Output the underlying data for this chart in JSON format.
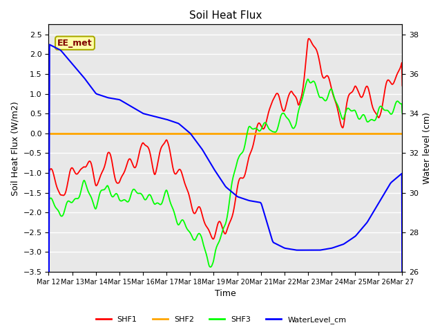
{
  "title": "Soil Heat Flux",
  "xlabel": "Time",
  "ylabel_left": "Soil Heat Flux (W/m2)",
  "ylabel_right": "Water level (cm)",
  "ylim_left": [
    -3.5,
    2.75
  ],
  "ylim_right": [
    26,
    38.5
  ],
  "fig_bg_color": "#ffffff",
  "plot_bg_color": "#e8e8e8",
  "grid_color": "white",
  "annotation_text": "EE_met",
  "annotation_bg": "#ffffaa",
  "annotation_edge": "#aaaa00",
  "annotation_text_color": "#800000",
  "line_colors": {
    "SHF1": "red",
    "SHF2": "orange",
    "SHF3": "lime",
    "WaterLevel_cm": "blue"
  },
  "xtick_labels": [
    "Mar 12",
    "Mar 13",
    "Mar 14",
    "Mar 15",
    "Mar 16",
    "Mar 17",
    "Mar 18",
    "Mar 19",
    "Mar 20",
    "Mar 21",
    "Mar 22",
    "Mar 23",
    "Mar 24",
    "Mar 25",
    "Mar 26",
    "Mar 27"
  ],
  "yticks_left": [
    -3.5,
    -3.0,
    -2.5,
    -2.0,
    -1.5,
    -1.0,
    -0.5,
    0.0,
    0.5,
    1.0,
    1.5,
    2.0,
    2.5
  ],
  "yticks_right": [
    26,
    28,
    30,
    32,
    34,
    36,
    38
  ],
  "num_days": 16
}
